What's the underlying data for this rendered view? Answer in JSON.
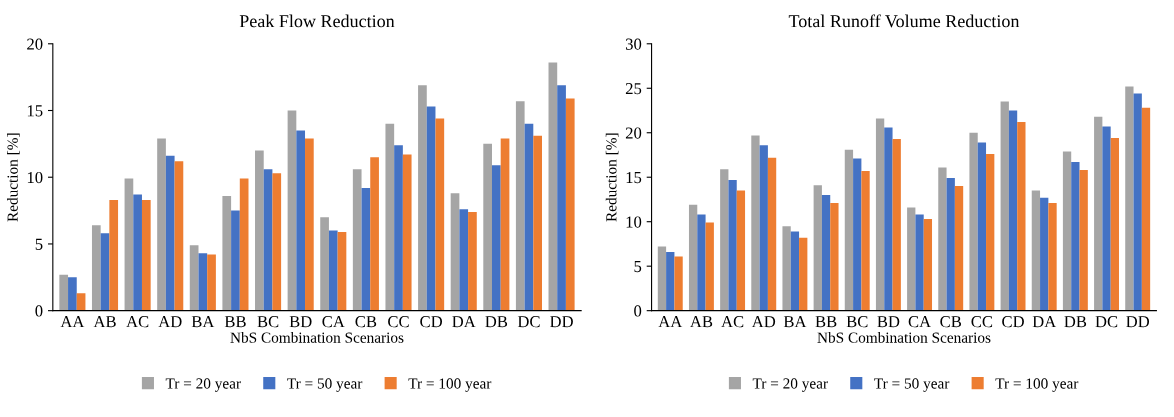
{
  "chart_data": [
    {
      "type": "bar",
      "title": "Peak Flow Reduction",
      "xlabel": "NbS Combination Scenarios",
      "ylabel": "Reduction [%]",
      "categories": [
        "AA",
        "AB",
        "AC",
        "AD",
        "BA",
        "BB",
        "BC",
        "BD",
        "CA",
        "CB",
        "CC",
        "CD",
        "DA",
        "DB",
        "DC",
        "DD"
      ],
      "series": [
        {
          "name": "Tr = 20 year",
          "color": "#a5a5a5",
          "values": [
            2.7,
            6.4,
            9.9,
            12.9,
            4.9,
            8.6,
            12.0,
            15.0,
            7.0,
            10.6,
            14.0,
            16.9,
            8.8,
            12.5,
            15.7,
            18.6
          ]
        },
        {
          "name": "Tr = 50 year",
          "color": "#4472c4",
          "values": [
            2.5,
            5.8,
            8.7,
            11.6,
            4.3,
            7.5,
            10.6,
            13.5,
            6.0,
            9.2,
            12.4,
            15.3,
            7.6,
            10.9,
            14.0,
            16.9
          ]
        },
        {
          "name": "Tr = 100 year",
          "color": "#ed7d31",
          "values": [
            1.3,
            8.3,
            8.3,
            11.2,
            4.2,
            9.9,
            10.3,
            12.9,
            5.9,
            11.5,
            11.7,
            14.4,
            7.4,
            12.9,
            13.1,
            15.9
          ]
        }
      ],
      "ylim": [
        0,
        20
      ],
      "yticks": [
        0,
        5,
        10,
        15,
        20
      ],
      "grid": false,
      "legend": "bottom"
    },
    {
      "type": "bar",
      "title": "Total Runoff Volume Reduction",
      "xlabel": "NbS Combination Scenarios",
      "ylabel": "Reduction [%]",
      "categories": [
        "AA",
        "AB",
        "AC",
        "AD",
        "BA",
        "BB",
        "BC",
        "BD",
        "CA",
        "CB",
        "CC",
        "CD",
        "DA",
        "DB",
        "DC",
        "DD"
      ],
      "series": [
        {
          "name": "Tr = 20 year",
          "color": "#a5a5a5",
          "values": [
            7.2,
            11.9,
            15.9,
            19.7,
            9.5,
            14.1,
            18.1,
            21.6,
            11.6,
            16.1,
            20.0,
            23.5,
            13.5,
            17.9,
            21.8,
            25.2
          ]
        },
        {
          "name": "Tr = 50 year",
          "color": "#4472c4",
          "values": [
            6.6,
            10.8,
            14.7,
            18.6,
            8.9,
            13.0,
            17.1,
            20.6,
            10.8,
            14.9,
            18.9,
            22.5,
            12.7,
            16.7,
            20.7,
            24.4
          ]
        },
        {
          "name": "Tr = 100 year",
          "color": "#ed7d31",
          "values": [
            6.1,
            9.9,
            13.5,
            17.2,
            8.2,
            12.1,
            15.7,
            19.3,
            10.3,
            14.0,
            17.6,
            21.2,
            12.1,
            15.8,
            19.4,
            22.8
          ]
        }
      ],
      "ylim": [
        0,
        30
      ],
      "yticks": [
        0,
        5,
        10,
        15,
        20,
        25,
        30
      ],
      "grid": false,
      "legend": "bottom"
    }
  ]
}
